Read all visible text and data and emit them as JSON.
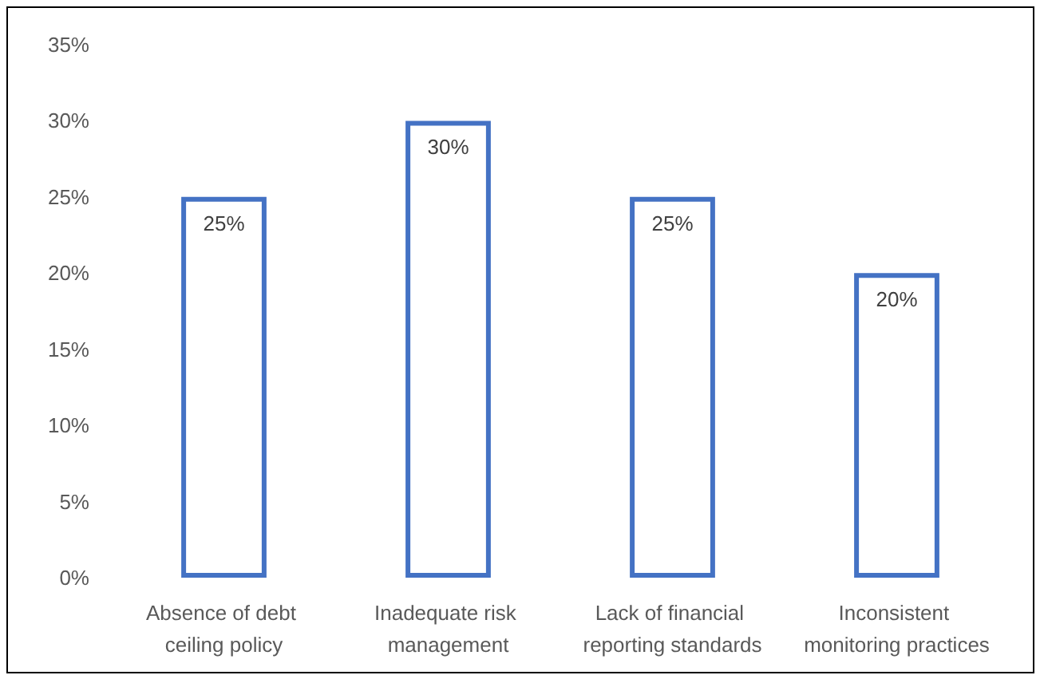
{
  "chart_data": {
    "type": "bar",
    "categories": [
      "Absence of debt ceiling policy",
      "Inadequate risk management",
      "Lack of financial reporting standards",
      "Inconsistent monitoring practices"
    ],
    "values": [
      25,
      30,
      25,
      20
    ],
    "value_labels": [
      "25%",
      "30%",
      "25%",
      "20%"
    ],
    "color": "#4472c4",
    "ylim": [
      0,
      35
    ],
    "yticks": [
      {
        "value": 0,
        "label": "0%"
      },
      {
        "value": 5,
        "label": "5%"
      },
      {
        "value": 10,
        "label": "10%"
      },
      {
        "value": 15,
        "label": "15%"
      },
      {
        "value": 20,
        "label": "20%"
      },
      {
        "value": 25,
        "label": "25%"
      },
      {
        "value": 30,
        "label": "30%"
      },
      {
        "value": 35,
        "label": "35%"
      }
    ],
    "grid": false
  }
}
